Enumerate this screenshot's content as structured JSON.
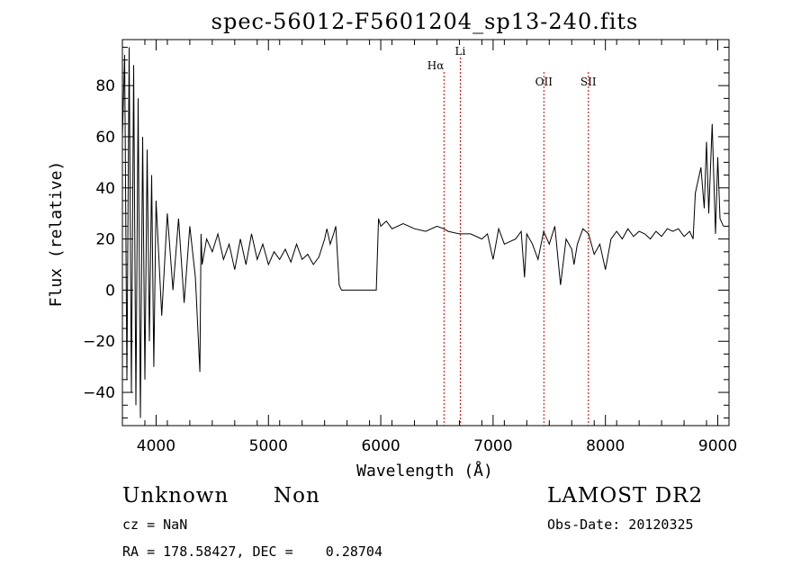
{
  "chart_data": {
    "type": "line",
    "title": "spec-56012-F5601204_sp13-240.fits",
    "xlabel": "Wavelength (Å)",
    "ylabel": "Flux (relative)",
    "xlim": [
      3700,
      9100
    ],
    "ylim": [
      -53,
      98
    ],
    "x_ticks": [
      4000,
      5000,
      6000,
      7000,
      8000,
      9000
    ],
    "y_ticks": [
      -40,
      -20,
      0,
      20,
      40,
      60,
      80
    ],
    "x_tick_labels": [
      "4000",
      "5000",
      "6000",
      "7000",
      "8000",
      "9000"
    ],
    "y_tick_labels": [
      "−40",
      "−20",
      "0",
      "20",
      "40",
      "60",
      "80"
    ],
    "grid": false,
    "line_color": "#000000",
    "marker_color": "#cc0000",
    "series": [
      {
        "x": [
          3700,
          3720,
          3740,
          3760,
          3780,
          3800,
          3820,
          3840,
          3860,
          3880,
          3900,
          3920,
          3940,
          3960,
          3980,
          4000,
          4050,
          4100,
          4150,
          4200,
          4250,
          4300,
          4350,
          4390,
          4400,
          4410,
          4450,
          4500,
          4550,
          4600,
          4650,
          4700,
          4750,
          4800,
          4850,
          4900,
          4950,
          5000,
          5050,
          5100,
          5150,
          5200,
          5250,
          5300,
          5350,
          5400,
          5450,
          5500,
          5520,
          5550,
          5580,
          5600,
          5630,
          5650,
          5660,
          5680,
          5700,
          5800,
          5900,
          5960,
          5980,
          6000,
          6050,
          6100,
          6200,
          6300,
          6400,
          6500,
          6560,
          6600,
          6700,
          6800,
          6900,
          6950,
          7000,
          7050,
          7100,
          7200,
          7250,
          7280,
          7300,
          7350,
          7400,
          7450,
          7500,
          7550,
          7600,
          7650,
          7700,
          7720,
          7750,
          7800,
          7850,
          7900,
          7950,
          8000,
          8050,
          8100,
          8150,
          8200,
          8250,
          8300,
          8350,
          8400,
          8450,
          8500,
          8550,
          8600,
          8650,
          8700,
          8750,
          8780,
          8800,
          8820,
          8850,
          8880,
          8900,
          8920,
          8950,
          8980,
          9000,
          9020,
          9050
        ],
        "y": [
          60,
          92,
          -35,
          95,
          -40,
          88,
          -45,
          75,
          -50,
          60,
          -35,
          55,
          -20,
          45,
          -30,
          35,
          -10,
          30,
          0,
          28,
          -5,
          25,
          5,
          -32,
          22,
          10,
          20,
          15,
          22,
          12,
          18,
          8,
          20,
          10,
          22,
          12,
          18,
          10,
          15,
          12,
          16,
          11,
          18,
          12,
          14,
          10,
          13,
          20,
          24,
          18,
          22,
          25,
          2,
          0,
          0,
          0,
          0,
          0,
          0,
          0,
          28,
          25,
          27,
          24,
          26,
          24,
          23,
          25,
          24,
          23,
          22,
          22,
          20,
          22,
          12,
          24,
          18,
          20,
          23,
          5,
          22,
          18,
          12,
          23,
          18,
          25,
          2,
          20,
          16,
          10,
          18,
          24,
          22,
          14,
          18,
          8,
          20,
          23,
          20,
          24,
          21,
          23,
          22,
          20,
          23,
          21,
          24,
          23,
          24,
          21,
          23,
          20,
          38,
          42,
          48,
          32,
          58,
          30,
          65,
          22,
          52,
          28,
          25
        ]
      }
    ],
    "markers": [
      {
        "wavelength": 6563,
        "label": "Hα"
      },
      {
        "wavelength": 6708,
        "label": "Li"
      },
      {
        "wavelength": 7452,
        "label": "OII"
      },
      {
        "wavelength": 7848,
        "label": "SII"
      }
    ]
  },
  "footer": {
    "object_class": "Unknown",
    "object_subclass": "Non",
    "cz": "cz = NaN",
    "coords": "RA = 178.58427, DEC =    0.28704",
    "survey": "LAMOST DR2",
    "obs_date": "Obs-Date: 20120325"
  }
}
